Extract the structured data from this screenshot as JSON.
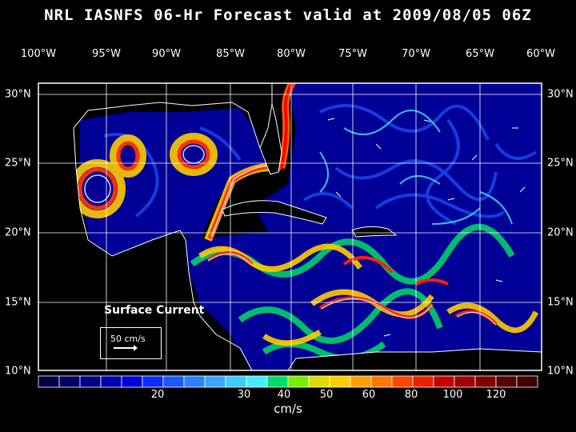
{
  "title": "NRL IASNFS  06-Hr Forecast valid at 2009/08/05 06Z",
  "lon_labels": [
    "100°W",
    "95°W",
    "90°W",
    "85°W",
    "80°W",
    "75°W",
    "70°W",
    "65°W",
    "60°W"
  ],
  "lat_labels": [
    "30°N",
    "25°N",
    "20°N",
    "15°N",
    "10°N"
  ],
  "legend": {
    "title": "Surface Current",
    "reference_text": "50 cm/s",
    "reference_speed_cm_s": 50
  },
  "colorbar": {
    "unit": "cm/s",
    "tick_labels": [
      "20",
      "30",
      "40",
      "50",
      "60",
      "80",
      "100",
      "120"
    ],
    "colors": [
      "#000044",
      "#000066",
      "#00008a",
      "#0000b4",
      "#0000dc",
      "#0a2cff",
      "#1e56ff",
      "#2e80ff",
      "#3aa6ff",
      "#40ccff",
      "#44eeff",
      "#00dd66",
      "#77ee00",
      "#dddd00",
      "#ffcc00",
      "#ffa000",
      "#ff7800",
      "#ff4800",
      "#e82000",
      "#c40000",
      "#a00000",
      "#7c0000",
      "#5a0000",
      "#3e0000"
    ]
  },
  "colors": {
    "background": "#000000",
    "land_coast": "#ffffff",
    "ocean_low": "#000088"
  }
}
